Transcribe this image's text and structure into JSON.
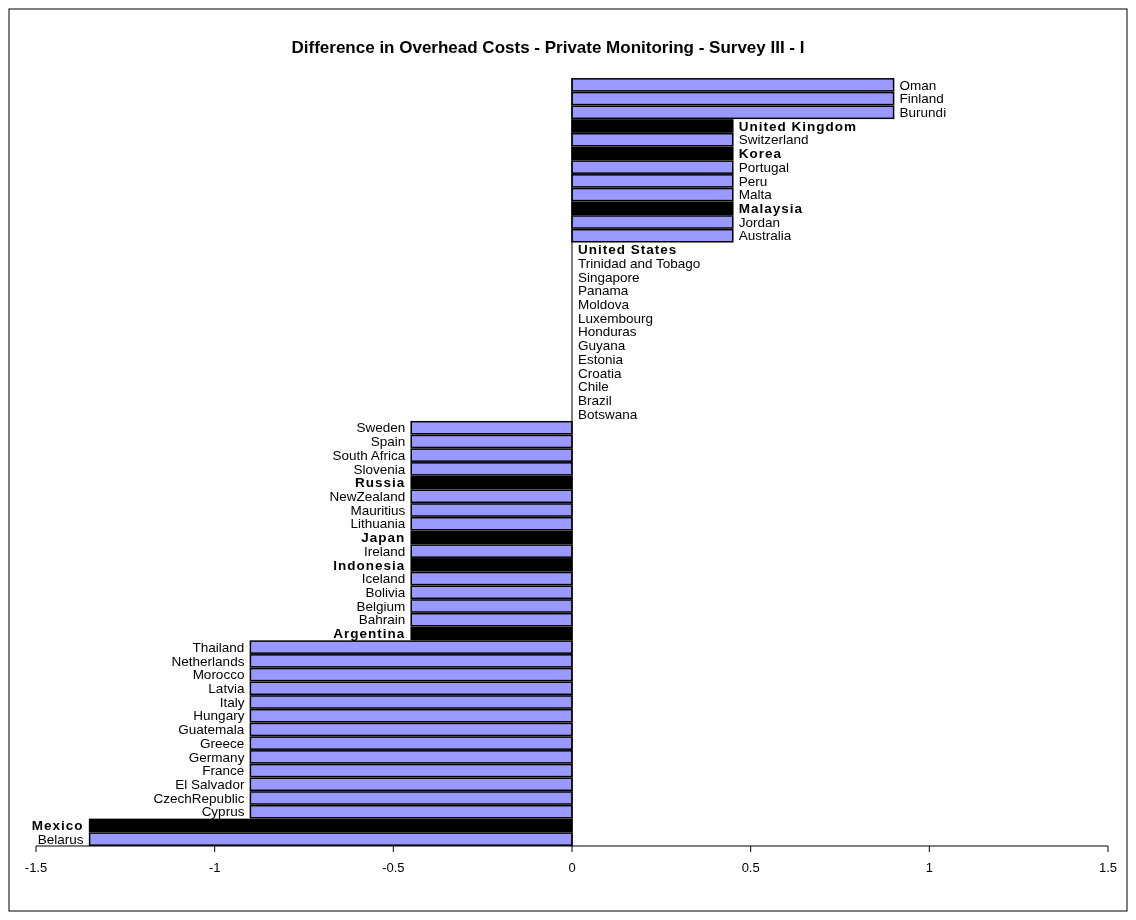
{
  "chart_data": {
    "type": "bar",
    "orientation": "horizontal",
    "title": "Difference in Overhead Costs - Private Monitoring - Survey III - I",
    "categories": [
      "Oman",
      "Finland",
      "Burundi",
      "United Kingdom",
      "Switzerland",
      "Korea",
      "Portugal",
      "Peru",
      "Malta",
      "Malaysia",
      "Jordan",
      "Australia",
      "United States",
      "Trinidad and Tobago",
      "Singapore",
      "Panama",
      "Moldova",
      "Luxembourg",
      "Honduras",
      "Guyana",
      "Estonia",
      "Croatia",
      "Chile",
      "Brazil",
      "Botswana",
      "Sweden",
      "Spain",
      "South Africa",
      "Slovenia",
      "Russia",
      "NewZealand",
      "Mauritius",
      "Lithuania",
      "Japan",
      "Ireland",
      "Indonesia",
      "Iceland",
      "Bolivia",
      "Belgium",
      "Bahrain",
      "Argentina",
      "Thailand",
      "Netherlands",
      "Morocco",
      "Latvia",
      "Italy",
      "Hungary",
      "Guatemala",
      "Greece",
      "Germany",
      "France",
      "El Salvador",
      "CzechRepublic",
      "Cyprus",
      "Mexico",
      "Belarus"
    ],
    "values": [
      0.9,
      0.9,
      0.9,
      0.45,
      0.45,
      0.45,
      0.45,
      0.45,
      0.45,
      0.45,
      0.45,
      0.45,
      0,
      0,
      0,
      0,
      0,
      0,
      0,
      0,
      0,
      0,
      0,
      0,
      0,
      -0.45,
      -0.45,
      -0.45,
      -0.45,
      -0.45,
      -0.45,
      -0.45,
      -0.45,
      -0.45,
      -0.45,
      -0.45,
      -0.45,
      -0.45,
      -0.45,
      -0.45,
      -0.45,
      -0.9,
      -0.9,
      -0.9,
      -0.9,
      -0.9,
      -0.9,
      -0.9,
      -0.9,
      -0.9,
      -0.9,
      -0.9,
      -0.9,
      -0.9,
      -1.35,
      -1.35
    ],
    "colors": [
      "#9999ff",
      "#9999ff",
      "#9999ff",
      "#000000",
      "#9999ff",
      "#000000",
      "#9999ff",
      "#9999ff",
      "#9999ff",
      "#000000",
      "#9999ff",
      "#9999ff",
      "#000000",
      "#9999ff",
      "#9999ff",
      "#9999ff",
      "#9999ff",
      "#9999ff",
      "#9999ff",
      "#9999ff",
      "#9999ff",
      "#9999ff",
      "#9999ff",
      "#9999ff",
      "#9999ff",
      "#9999ff",
      "#9999ff",
      "#9999ff",
      "#9999ff",
      "#000000",
      "#9999ff",
      "#9999ff",
      "#9999ff",
      "#000000",
      "#9999ff",
      "#000000",
      "#9999ff",
      "#9999ff",
      "#9999ff",
      "#9999ff",
      "#000000",
      "#9999ff",
      "#9999ff",
      "#9999ff",
      "#9999ff",
      "#9999ff",
      "#9999ff",
      "#9999ff",
      "#9999ff",
      "#9999ff",
      "#9999ff",
      "#9999ff",
      "#9999ff",
      "#9999ff",
      "#000000",
      "#9999ff"
    ],
    "xlim": [
      -1.5,
      1.5
    ],
    "xticks": [
      -1.5,
      -1,
      -0.5,
      0,
      0.5,
      1,
      1.5
    ]
  }
}
